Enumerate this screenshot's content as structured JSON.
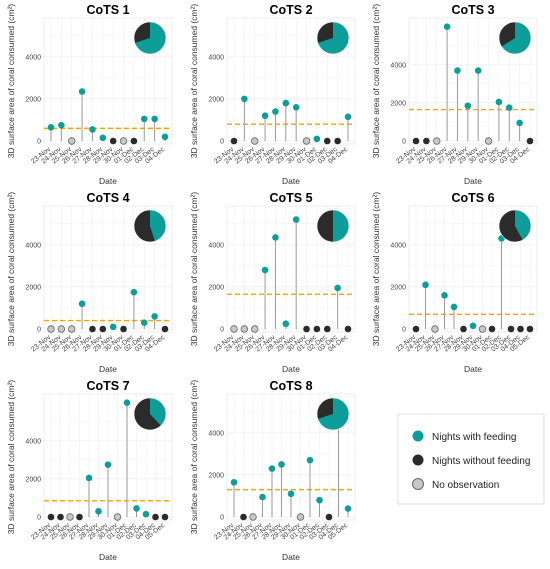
{
  "figure": {
    "y_axis_label": "3D surface area of coral consumed (cm²)",
    "x_axis_label": "Date"
  },
  "legend": {
    "items": [
      {
        "label": "Nights with feeding",
        "color": "#0E9E9A"
      },
      {
        "label": "Nights without feeding",
        "color": "#2B2B2B"
      },
      {
        "label": "No observation",
        "color": "#C8C8C8"
      }
    ]
  },
  "colors": {
    "feeding": "#0E9E9A",
    "no_feeding": "#2B2B2B",
    "no_observation": "#C8C8C8",
    "mean_line": "#F0A500",
    "stem": "#9A9A9A",
    "grid": "#EBEBEB"
  },
  "chart_data": [
    {
      "type": "lollipop",
      "title": "CoTS 1",
      "ylim": [
        0,
        5700
      ],
      "yticks": [
        0,
        2000,
        4000
      ],
      "categories": [
        "23-Nov",
        "24-Nov",
        "25-Nov",
        "26-Nov",
        "27-Nov",
        "28-Nov",
        "29-Nov",
        "30-Nov",
        "01-Dec",
        "02-Dec",
        "03-Dec",
        "04-Dec"
      ],
      "values": [
        650,
        750,
        0,
        2350,
        550,
        150,
        0,
        0,
        0,
        1050,
        1050,
        200
      ],
      "status": [
        "F",
        "F",
        "O",
        "F",
        "F",
        "F",
        "N",
        "O",
        "N",
        "F",
        "F",
        "F"
      ],
      "mean": 600,
      "pie": {
        "feeding": 0.7,
        "no_feeding": 0.3
      }
    },
    {
      "type": "lollipop",
      "title": "CoTS 2",
      "ylim": [
        0,
        5700
      ],
      "yticks": [
        0,
        2000,
        4000
      ],
      "categories": [
        "23-Nov",
        "24-Nov",
        "25-Nov",
        "26-Nov",
        "27-Nov",
        "28-Nov",
        "29-Nov",
        "30-Nov",
        "01-Dec",
        "02-Dec",
        "03-Dec",
        "04-Dec"
      ],
      "values": [
        0,
        2000,
        0,
        1200,
        1400,
        1800,
        1600,
        0,
        100,
        0,
        0,
        1150
      ],
      "status": [
        "N",
        "F",
        "O",
        "F",
        "F",
        "F",
        "F",
        "O",
        "F",
        "N",
        "N",
        "F"
      ],
      "mean": 800,
      "pie": {
        "feeding": 0.7,
        "no_feeding": 0.3
      }
    },
    {
      "type": "lollipop",
      "title": "CoTS 3",
      "ylim": [
        0,
        6300
      ],
      "yticks": [
        0,
        2000,
        4000
      ],
      "categories": [
        "23-Nov",
        "24-Nov",
        "25-Nov",
        "26-Nov",
        "27-Nov",
        "28-Nov",
        "29-Nov",
        "30-Nov",
        "01-Dec",
        "02-Dec",
        "03-Dec",
        "04-Dec"
      ],
      "values": [
        0,
        0,
        0,
        6000,
        3700,
        1850,
        3700,
        0,
        2050,
        1750,
        950,
        0
      ],
      "status": [
        "N",
        "N",
        "O",
        "F",
        "F",
        "F",
        "F",
        "O",
        "F",
        "F",
        "F",
        "N"
      ],
      "mean": 1650,
      "pie": {
        "feeding": 0.66,
        "no_feeding": 0.34
      }
    },
    {
      "type": "lollipop",
      "title": "CoTS 4",
      "ylim": [
        0,
        5700
      ],
      "yticks": [
        0,
        2000,
        4000
      ],
      "categories": [
        "23-Nov",
        "24-Nov",
        "25-Nov",
        "26-Nov",
        "27-Nov",
        "28-Nov",
        "29-Nov",
        "30-Nov",
        "01-Dec",
        "02-Dec",
        "03-Dec",
        "04-Dec"
      ],
      "values": [
        0,
        0,
        0,
        1200,
        0,
        0,
        100,
        0,
        1750,
        300,
        600,
        0
      ],
      "status": [
        "O",
        "O",
        "O",
        "F",
        "N",
        "N",
        "F",
        "N",
        "F",
        "F",
        "F",
        "N"
      ],
      "mean": 400,
      "pie": {
        "feeding": 0.45,
        "no_feeding": 0.55
      }
    },
    {
      "type": "lollipop",
      "title": "CoTS 5",
      "ylim": [
        0,
        5700
      ],
      "yticks": [
        0,
        2000,
        4000
      ],
      "categories": [
        "23-Nov",
        "24-Nov",
        "25-Nov",
        "26-Nov",
        "27-Nov",
        "28-Nov",
        "29-Nov",
        "30-Nov",
        "01-Dec",
        "02-Dec",
        "03-Dec",
        "04-Dec"
      ],
      "values": [
        0,
        0,
        0,
        2800,
        4350,
        250,
        5200,
        0,
        0,
        0,
        1950,
        0
      ],
      "status": [
        "O",
        "O",
        "O",
        "F",
        "F",
        "F",
        "F",
        "N",
        "N",
        "N",
        "F",
        "N"
      ],
      "mean": 1650,
      "pie": {
        "feeding": 0.5,
        "no_feeding": 0.5
      }
    },
    {
      "type": "lollipop",
      "title": "CoTS 6",
      "ylim": [
        0,
        5700
      ],
      "yticks": [
        0,
        2000,
        4000
      ],
      "categories": [
        "23-Nov",
        "24-Nov",
        "25-Nov",
        "26-Nov",
        "27-Nov",
        "28-Nov",
        "29-Nov",
        "30-Nov",
        "01-Dec",
        "02-Dec",
        "03-Dec",
        "04-Dec",
        "05-Dec"
      ],
      "values": [
        0,
        2100,
        0,
        1600,
        1050,
        0,
        150,
        0,
        0,
        4300,
        0,
        0,
        0
      ],
      "status": [
        "N",
        "F",
        "O",
        "F",
        "F",
        "N",
        "F",
        "O",
        "N",
        "F",
        "N",
        "N",
        "N"
      ],
      "mean": 700,
      "pie": {
        "feeding": 0.42,
        "no_feeding": 0.58
      }
    },
    {
      "type": "lollipop",
      "title": "CoTS 7",
      "ylim": [
        0,
        6300
      ],
      "yticks": [
        0,
        2000,
        4000
      ],
      "categories": [
        "23-Nov",
        "24-Nov",
        "25-Nov",
        "26-Nov",
        "27-Nov",
        "28-Nov",
        "29-Nov",
        "30-Nov",
        "01-Dec",
        "02-Dec",
        "03-Dec",
        "04-Dec",
        "05-Dec"
      ],
      "values": [
        0,
        0,
        0,
        0,
        2050,
        300,
        2750,
        0,
        6000,
        450,
        150,
        0,
        0
      ],
      "status": [
        "N",
        "N",
        "O",
        "N",
        "F",
        "F",
        "F",
        "O",
        "F",
        "F",
        "F",
        "N",
        "N"
      ],
      "mean": 850,
      "pie": {
        "feeding": 0.38,
        "no_feeding": 0.62
      }
    },
    {
      "type": "lollipop",
      "title": "CoTS 8",
      "ylim": [
        0,
        5700
      ],
      "yticks": [
        0,
        2000,
        4000
      ],
      "categories": [
        "23-Nov",
        "24-Nov",
        "25-Nov",
        "26-Nov",
        "27-Nov",
        "28-Nov",
        "29-Nov",
        "30-Nov",
        "01-Dec",
        "02-Dec",
        "03-Dec",
        "04-Dec",
        "05-Dec"
      ],
      "values": [
        1650,
        0,
        0,
        950,
        2300,
        2500,
        1100,
        0,
        2700,
        800,
        0,
        4700,
        400
      ],
      "status": [
        "F",
        "N",
        "O",
        "F",
        "F",
        "F",
        "F",
        "O",
        "F",
        "F",
        "N",
        "F",
        "F"
      ],
      "mean": 1300,
      "pie": {
        "feeding": 0.7,
        "no_feeding": 0.3
      }
    }
  ]
}
